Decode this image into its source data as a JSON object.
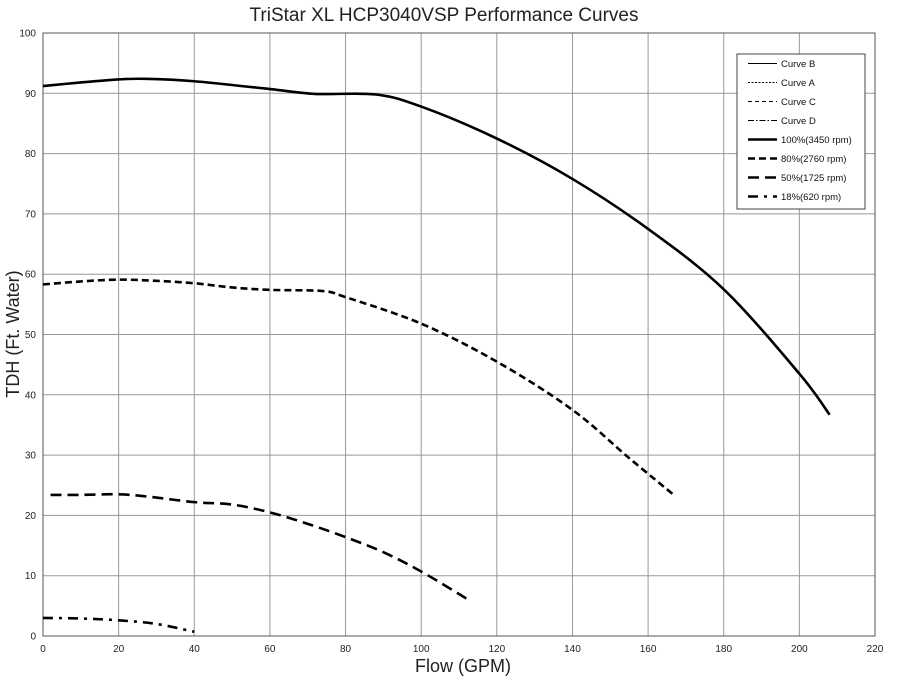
{
  "chart_data": {
    "type": "line",
    "title": "TriStar XL HCP3040VSP Performance Curves",
    "xlabel": "Flow (GPM)",
    "ylabel": "TDH (Ft. Water)",
    "xlim": [
      0,
      220
    ],
    "ylim": [
      0,
      100
    ],
    "xticks": [
      0,
      20,
      40,
      60,
      80,
      100,
      120,
      140,
      160,
      180,
      200,
      220
    ],
    "yticks": [
      0,
      10,
      20,
      30,
      40,
      50,
      60,
      70,
      80,
      90,
      100
    ],
    "grid": true,
    "legend_position": "top-right",
    "legend": [
      {
        "label": "Curve B",
        "style": "solid-thin"
      },
      {
        "label": "Curve A",
        "style": "dotted-thin"
      },
      {
        "label": "Curve C",
        "style": "dashed-thin"
      },
      {
        "label": "Curve D",
        "style": "dashdot-thin"
      },
      {
        "label": "100%(3450 rpm)",
        "style": "solid-thick"
      },
      {
        "label": "80%(2760 rpm)",
        "style": "dashed-thick"
      },
      {
        "label": "50%(1725 rpm)",
        "style": "longdash-thick"
      },
      {
        "label": "18%(620 rpm)",
        "style": "dashdot-thick"
      }
    ],
    "series": [
      {
        "name": "100%(3450 rpm)",
        "style": "solid-thick",
        "points": [
          [
            0,
            91.2
          ],
          [
            10,
            91.8
          ],
          [
            20,
            92.3
          ],
          [
            27,
            92.4
          ],
          [
            40,
            92
          ],
          [
            60,
            90.7
          ],
          [
            72,
            89.9
          ],
          [
            88,
            89.8
          ],
          [
            100,
            87.8
          ],
          [
            120,
            82.5
          ],
          [
            140,
            75.8
          ],
          [
            160,
            67.5
          ],
          [
            180,
            57.5
          ],
          [
            200,
            43.5
          ],
          [
            208,
            36.7
          ]
        ]
      },
      {
        "name": "80%(2760 rpm)",
        "style": "dashed-thick",
        "points": [
          [
            0,
            58.3
          ],
          [
            10,
            58.8
          ],
          [
            20,
            59.1
          ],
          [
            30,
            58.9
          ],
          [
            40,
            58.5
          ],
          [
            50,
            57.8
          ],
          [
            60,
            57.4
          ],
          [
            74,
            57.2
          ],
          [
            80,
            56.2
          ],
          [
            100,
            51.8
          ],
          [
            120,
            45.5
          ],
          [
            140,
            37.5
          ],
          [
            155,
            29.5
          ],
          [
            167,
            23.3
          ]
        ]
      },
      {
        "name": "50%(1725 rpm)",
        "style": "longdash-thick",
        "points": [
          [
            2,
            23.4
          ],
          [
            10,
            23.4
          ],
          [
            20,
            23.5
          ],
          [
            28,
            23.1
          ],
          [
            40,
            22.2
          ],
          [
            50,
            21.8
          ],
          [
            60,
            20.5
          ],
          [
            70,
            18.6
          ],
          [
            80,
            16.4
          ],
          [
            90,
            13.9
          ],
          [
            100,
            10.7
          ],
          [
            112,
            6.2
          ]
        ]
      },
      {
        "name": "18%(620 rpm)",
        "style": "dashdot-thick",
        "points": [
          [
            0,
            3
          ],
          [
            10,
            2.9
          ],
          [
            20,
            2.6
          ],
          [
            30,
            2
          ],
          [
            40,
            0.7
          ]
        ]
      }
    ]
  }
}
